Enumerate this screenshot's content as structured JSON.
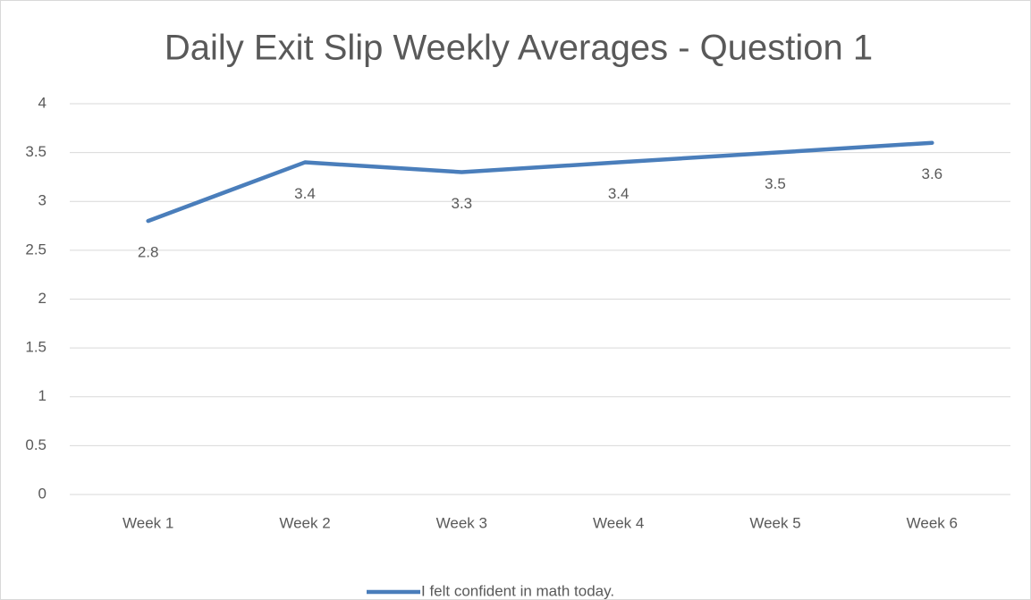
{
  "chart_data": {
    "type": "line",
    "title": "Daily Exit Slip Weekly Averages - Question 1",
    "categories": [
      "Week 1",
      "Week 2",
      "Week 3",
      "Week 4",
      "Week 5",
      "Week 6"
    ],
    "series": [
      {
        "name": "I felt confident in math today.",
        "color": "#4a7ebb",
        "values": [
          2.8,
          3.4,
          3.3,
          3.4,
          3.5,
          3.6
        ]
      }
    ],
    "ylim": [
      0,
      4
    ],
    "yticks": [
      0,
      0.5,
      1,
      1.5,
      2,
      2.5,
      3,
      3.5,
      4
    ],
    "grid": true,
    "legend": "bottom",
    "data_labels": true
  }
}
